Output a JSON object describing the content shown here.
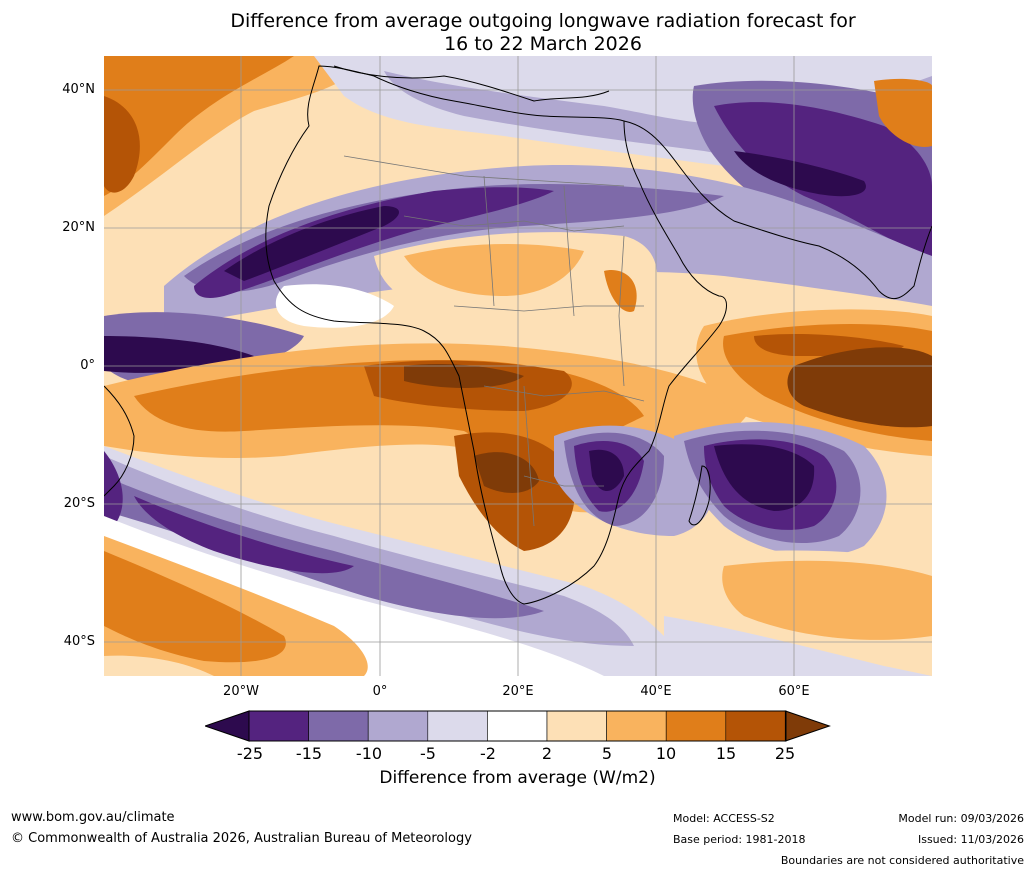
{
  "title_line1": "Difference from average outgoing longwave radiation forecast for",
  "title_line2": "16 to 22 March 2026",
  "lat_labels": [
    "40°N",
    "20°N",
    "0°",
    "20°S",
    "40°S"
  ],
  "lon_labels": [
    "20°W",
    "0°",
    "20°E",
    "40°E",
    "60°E"
  ],
  "colorbar": {
    "ticks": [
      "-25",
      "-15",
      "-10",
      "-5",
      "-2",
      "2",
      "5",
      "10",
      "15",
      "25"
    ],
    "colors": [
      "#2d0a4e",
      "#54237f",
      "#7e6aa9",
      "#b0a8d0",
      "#dcdaeb",
      "#ffffff",
      "#fde0b6",
      "#f9b35e",
      "#e07e1a",
      "#b45406",
      "#7f3b08"
    ],
    "label": "Difference from average (W/m2)"
  },
  "footer": {
    "website": "www.bom.gov.au/climate",
    "copyright": "© Commonwealth of Australia 2026, Australian Bureau of Meteorology",
    "model": "Model: ACCESS-S2",
    "base_period": "Base period: 1981-2018",
    "model_run": "Model run: 09/03/2026",
    "issued": "Issued: 11/03/2026",
    "disclaimer": "Boundaries are not considered authoritative"
  }
}
